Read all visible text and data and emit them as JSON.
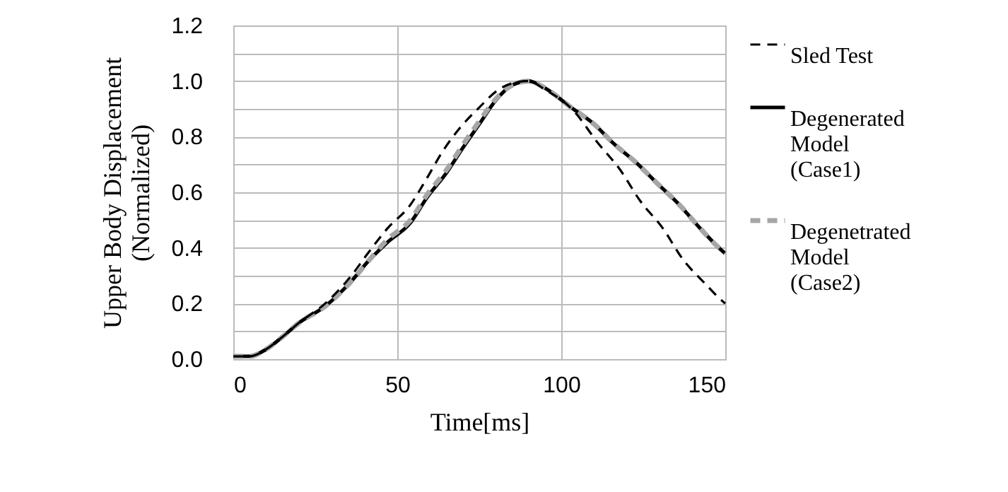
{
  "chart_data": {
    "type": "line",
    "xlabel": "Time[ms]",
    "ylabel": "Upper Body Displacement (Normalized)",
    "xlim": [
      0,
      150
    ],
    "xticks": [
      0,
      50,
      100,
      150
    ],
    "ylim": [
      0,
      1.2
    ],
    "yticks": [
      {
        "value": 0,
        "label": "0.0"
      },
      {
        "value": 0.1,
        "label": null
      },
      0.2,
      {
        "value": 0.3,
        "label": null
      },
      0.4,
      {
        "value": 0.5,
        "label": null
      },
      0.6,
      {
        "value": 0.7,
        "label": null
      },
      0.8,
      {
        "value": 0.9,
        "label": null
      },
      {
        "value": 1,
        "label": "1.0"
      },
      {
        "value": 1.1,
        "label": null
      },
      1.2
    ],
    "grid": true,
    "legend": "right",
    "series": [
      {
        "name": "Sled Test",
        "color": "#000000",
        "line_style": "dashed",
        "x": [
          0,
          5,
          10,
          15,
          20,
          28,
          36,
          41,
          47,
          54,
          59,
          64,
          69,
          75,
          81,
          86,
          90,
          95,
          104,
          111,
          118,
          124,
          131,
          137,
          144,
          149,
          150
        ],
        "values": [
          0.01,
          0.01,
          0.035,
          0.08,
          0.13,
          0.2,
          0.3,
          0.38,
          0.47,
          0.555,
          0.65,
          0.75,
          0.83,
          0.905,
          0.97,
          0.995,
          1.0,
          0.97,
          0.89,
          0.78,
          0.68,
          0.57,
          0.47,
          0.36,
          0.27,
          0.21,
          0.2
        ]
      },
      {
        "name": "Degenerated Model (Case1)",
        "color": "#000000",
        "line_style": "solid",
        "x": [
          0,
          5,
          10,
          15,
          20,
          28,
          36,
          41,
          47,
          54,
          59,
          65,
          70,
          75,
          80,
          85,
          90,
          95,
          103,
          110,
          116,
          123,
          129,
          136,
          142,
          149,
          150
        ],
        "values": [
          0.01,
          0.01,
          0.035,
          0.08,
          0.13,
          0.19,
          0.28,
          0.35,
          0.42,
          0.49,
          0.58,
          0.67,
          0.76,
          0.845,
          0.93,
          0.985,
          1.0,
          0.975,
          0.905,
          0.845,
          0.775,
          0.705,
          0.635,
          0.555,
          0.475,
          0.39,
          0.38
        ]
      },
      {
        "name": "Degenetrated Model (Case2)",
        "color": "#a6a6a6",
        "line_style": "dashed",
        "x": [
          0,
          5,
          10,
          15,
          20,
          28,
          36,
          41,
          47,
          54,
          59,
          65,
          70,
          75,
          80,
          85,
          90,
          95,
          103,
          110,
          116,
          123,
          129,
          136,
          142,
          149,
          150
        ],
        "values": [
          0.01,
          0.01,
          0.035,
          0.08,
          0.13,
          0.19,
          0.28,
          0.35,
          0.43,
          0.5,
          0.59,
          0.68,
          0.77,
          0.855,
          0.935,
          0.985,
          1.0,
          0.975,
          0.905,
          0.845,
          0.775,
          0.705,
          0.635,
          0.555,
          0.475,
          0.39,
          0.38
        ]
      }
    ]
  }
}
